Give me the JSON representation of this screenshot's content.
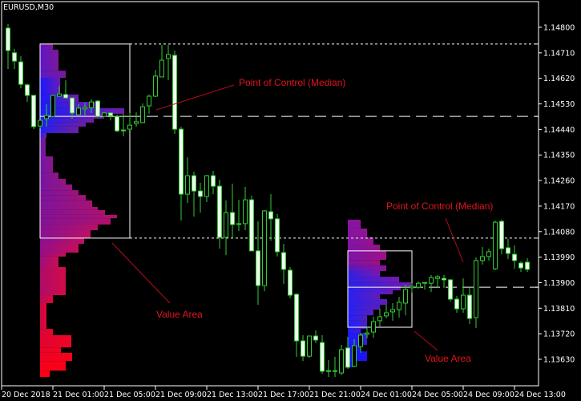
{
  "chart_data": {
    "type": "candlestick",
    "title": "EURUSD,M30",
    "grid": false,
    "y_axis": {
      "position": "right",
      "ticks": [
        "1.14800",
        "1.14710",
        "1.14620",
        "1.14530",
        "1.14440",
        "1.14350",
        "1.14260",
        "1.14170",
        "1.14080",
        "1.13990",
        "1.13900",
        "1.13810",
        "1.13720",
        "1.13630"
      ],
      "range": [
        1.13545,
        1.14912
      ]
    },
    "x_axis": {
      "ticks": [
        "20 Dec 2018",
        "21 Dec 01:00",
        "21 Dec 05:00",
        "21 Dec 09:00",
        "21 Dec 13:00",
        "21 Dec 17:00",
        "21 Dec 21:00",
        "24 Dec 01:00",
        "24 Dec 05:00",
        "24 Dec 09:00",
        "24 Dec 13:00"
      ]
    },
    "colors": {
      "background": "#000000",
      "candle_outline": "#32cd32",
      "bear_fill": "#f0fff0",
      "bull_fill": "#000000",
      "annotation": "#e0141e",
      "levels": "#ffffff"
    },
    "candles_ohlc": [
      [
        1.14797,
        1.14811,
        1.14653,
        1.14718
      ],
      [
        1.1471,
        1.14724,
        1.14653,
        1.14681
      ],
      [
        1.14678,
        1.14698,
        1.14585,
        1.14599
      ],
      [
        1.14597,
        1.14602,
        1.14537,
        1.1456
      ],
      [
        1.1456,
        1.1456,
        1.14441,
        1.1445
      ],
      [
        1.14452,
        1.14472,
        1.14444,
        1.14472
      ],
      [
        1.14478,
        1.14529,
        1.1445,
        1.14489
      ],
      [
        1.14486,
        1.14563,
        1.14486,
        1.1456
      ],
      [
        1.14557,
        1.14594,
        1.14554,
        1.14565
      ],
      [
        1.14563,
        1.14613,
        1.14551,
        1.14551
      ],
      [
        1.14551,
        1.14551,
        1.14478,
        1.14498
      ],
      [
        1.14492,
        1.14529,
        1.14492,
        1.14515
      ],
      [
        1.14512,
        1.14534,
        1.14486,
        1.14517
      ],
      [
        1.14517,
        1.14546,
        1.14498,
        1.14537
      ],
      [
        1.1454,
        1.14543,
        1.14483,
        1.14486
      ],
      [
        1.14486,
        1.145,
        1.14486,
        1.14498
      ],
      [
        1.14498,
        1.145,
        1.14472,
        1.14489
      ],
      [
        1.14486,
        1.14492,
        1.1443,
        1.14435
      ],
      [
        1.14438,
        1.14495,
        1.14416,
        1.14435
      ],
      [
        1.14441,
        1.14498,
        1.14438,
        1.14455
      ],
      [
        1.14461,
        1.145,
        1.1445,
        1.14467
      ],
      [
        1.14464,
        1.14532,
        1.14464,
        1.1452
      ],
      [
        1.14523,
        1.14563,
        1.14495,
        1.14557
      ],
      [
        1.14557,
        1.1465,
        1.14554,
        1.14628
      ],
      [
        1.14625,
        1.14738,
        1.14625,
        1.14684
      ],
      [
        1.1469,
        1.14738,
        1.14613,
        1.14704
      ],
      [
        1.14701,
        1.14718,
        1.14424,
        1.14441
      ],
      [
        1.14441,
        1.1445,
        1.14119,
        1.14212
      ],
      [
        1.14212,
        1.14342,
        1.14181,
        1.14277
      ],
      [
        1.14277,
        1.14291,
        1.14133,
        1.14223
      ],
      [
        1.14223,
        1.14252,
        1.14147,
        1.14204
      ],
      [
        1.14204,
        1.1428,
        1.14184,
        1.14277
      ],
      [
        1.14277,
        1.14294,
        1.14212,
        1.1424
      ],
      [
        1.1424,
        1.14263,
        1.1402,
        1.1406
      ],
      [
        1.1406,
        1.1419,
        1.13997,
        1.14147
      ],
      [
        1.14147,
        1.14249,
        1.14057,
        1.14105
      ],
      [
        1.14105,
        1.14192,
        1.14082,
        1.14108
      ],
      [
        1.14108,
        1.14238,
        1.14085,
        1.14192
      ],
      [
        1.14192,
        1.14207,
        1.14012,
        1.14012
      ],
      [
        1.14012,
        1.14116,
        1.13822,
        1.1389
      ],
      [
        1.1389,
        1.14156,
        1.1387,
        1.14153
      ],
      [
        1.1415,
        1.14212,
        1.14048,
        1.14125
      ],
      [
        1.14125,
        1.14142,
        1.13992,
        1.14009
      ],
      [
        1.14006,
        1.14037,
        1.13896,
        1.13947
      ],
      [
        1.13944,
        1.13955,
        1.13845,
        1.13856
      ],
      [
        1.13859,
        1.13862,
        1.13639,
        1.13695
      ],
      [
        1.13695,
        1.13715,
        1.13624,
        1.13641
      ],
      [
        1.13641,
        1.13712,
        1.13636,
        1.13712
      ],
      [
        1.13712,
        1.13732,
        1.13687,
        1.13698
      ],
      [
        1.13689,
        1.13715,
        1.13579,
        1.13588
      ],
      [
        1.13588,
        1.13627,
        1.13568,
        1.1359
      ],
      [
        1.13588,
        1.13639,
        1.13568,
        1.1359
      ],
      [
        1.13582,
        1.13681,
        1.13574,
        1.13664
      ],
      [
        1.1367,
        1.13709,
        1.13596,
        1.13602
      ],
      [
        1.13605,
        1.13701,
        1.13602,
        1.13678
      ],
      [
        1.13675,
        1.13723,
        1.13653,
        1.13715
      ],
      [
        1.13718,
        1.13743,
        1.13704,
        1.13723
      ],
      [
        1.13726,
        1.1378,
        1.13706,
        1.13763
      ],
      [
        1.13766,
        1.13808,
        1.13746,
        1.1378
      ],
      [
        1.13783,
        1.13822,
        1.13774,
        1.13794
      ],
      [
        1.13797,
        1.13828,
        1.13766,
        1.13805
      ],
      [
        1.13805,
        1.1385,
        1.13777,
        1.13831
      ],
      [
        1.13828,
        1.13893,
        1.13785,
        1.13876
      ],
      [
        1.13882,
        1.13898,
        1.13865,
        1.13887
      ],
      [
        1.13884,
        1.13904,
        1.13879,
        1.13898
      ],
      [
        1.13898,
        1.13901,
        1.13876,
        1.13901
      ],
      [
        1.13898,
        1.13927,
        1.13867,
        1.13918
      ],
      [
        1.13915,
        1.13927,
        1.13882,
        1.13921
      ],
      [
        1.13915,
        1.13927,
        1.13882,
        1.1391
      ],
      [
        1.1391,
        1.13913,
        1.13834,
        1.13842
      ],
      [
        1.13842,
        1.13853,
        1.13794,
        1.13808
      ],
      [
        1.13808,
        1.13915,
        1.13794,
        1.13856
      ],
      [
        1.13856,
        1.13887,
        1.13754,
        1.13774
      ],
      [
        1.13777,
        1.13989,
        1.1374,
        1.13978
      ],
      [
        1.13978,
        1.14026,
        1.13964,
        1.13992
      ],
      [
        1.13992,
        1.1402,
        1.13978,
        1.14009
      ],
      [
        1.13949,
        1.14119,
        1.13944,
        1.14113
      ],
      [
        1.14116,
        1.14122,
        1.14,
        1.1402
      ],
      [
        1.14023,
        1.14054,
        1.13983,
        1.14003
      ],
      [
        1.14,
        1.14031,
        1.13949,
        1.13978
      ],
      [
        1.13969,
        1.13975,
        1.13938,
        1.13952
      ],
      [
        1.13972,
        1.13986,
        1.13938,
        1.13947
      ]
    ],
    "volume_profiles": [
      {
        "session": "21 Dec",
        "poc": 1.14486,
        "value_area": [
          1.14741,
          1.14057
        ],
        "bins_high_low_volume": [
          [
            1.14741,
            1.14721,
            16
          ],
          [
            1.14721,
            1.14647,
            23
          ],
          [
            1.14647,
            1.14622,
            32
          ],
          [
            1.14622,
            1.14563,
            25
          ],
          [
            1.14563,
            1.14537,
            48
          ],
          [
            1.14537,
            1.14515,
            73
          ],
          [
            1.14515,
            1.14495,
            105
          ],
          [
            1.14495,
            1.14478,
            80
          ],
          [
            1.14478,
            1.14464,
            67
          ],
          [
            1.14464,
            1.1445,
            57
          ],
          [
            1.1445,
            1.14427,
            48
          ],
          [
            1.14427,
            1.1441,
            8
          ],
          [
            1.1441,
            1.14345,
            7
          ],
          [
            1.14345,
            1.14288,
            16
          ],
          [
            1.14288,
            1.14266,
            23
          ],
          [
            1.14266,
            1.14246,
            32
          ],
          [
            1.14246,
            1.14226,
            40
          ],
          [
            1.14226,
            1.14209,
            48
          ],
          [
            1.14209,
            1.1419,
            57
          ],
          [
            1.1419,
            1.14167,
            65
          ],
          [
            1.14167,
            1.14156,
            72
          ],
          [
            1.14156,
            1.14139,
            81
          ],
          [
            1.14139,
            1.14127,
            96
          ],
          [
            1.14127,
            1.14105,
            88
          ],
          [
            1.14105,
            1.14085,
            72
          ],
          [
            1.14085,
            1.14057,
            63
          ],
          [
            1.14057,
            1.14037,
            55
          ],
          [
            1.14037,
            1.14006,
            48
          ],
          [
            1.14006,
            1.13992,
            32
          ],
          [
            1.13992,
            1.13955,
            23
          ],
          [
            1.13955,
            1.13856,
            32
          ],
          [
            1.13856,
            1.13828,
            16
          ],
          [
            1.13828,
            1.13737,
            8
          ],
          [
            1.13737,
            1.13715,
            16
          ],
          [
            1.13715,
            1.13672,
            39
          ],
          [
            1.13672,
            1.13653,
            26
          ],
          [
            1.13653,
            1.13624,
            40
          ],
          [
            1.13624,
            1.1359,
            32
          ],
          [
            1.1359,
            1.13568,
            12
          ]
        ]
      },
      {
        "session": "24 Dec",
        "poc": 1.13884,
        "value_area": [
          1.14012,
          1.13743
        ],
        "bins_high_low_volume": [
          [
            1.14122,
            1.14091,
            16
          ],
          [
            1.14091,
            1.1406,
            24
          ],
          [
            1.1406,
            1.14034,
            32
          ],
          [
            1.14034,
            1.14012,
            40
          ],
          [
            1.14012,
            1.1398,
            48
          ],
          [
            1.1398,
            1.13961,
            40
          ],
          [
            1.13961,
            1.13941,
            48
          ],
          [
            1.13941,
            1.13921,
            40
          ],
          [
            1.13921,
            1.13901,
            64
          ],
          [
            1.13901,
            1.13887,
            79
          ],
          [
            1.13887,
            1.13873,
            66
          ],
          [
            1.13873,
            1.13859,
            56
          ],
          [
            1.13859,
            1.13842,
            40
          ],
          [
            1.13842,
            1.13822,
            49
          ],
          [
            1.13822,
            1.13805,
            40
          ],
          [
            1.13805,
            1.13785,
            32
          ],
          [
            1.13785,
            1.13766,
            24
          ],
          [
            1.13766,
            1.13737,
            24
          ],
          [
            1.13737,
            1.13723,
            16
          ],
          [
            1.13723,
            1.13681,
            24
          ],
          [
            1.13681,
            1.13658,
            16
          ],
          [
            1.13658,
            1.13624,
            24
          ],
          [
            1.13624,
            1.13602,
            8
          ]
        ]
      }
    ],
    "annotations": [
      {
        "text": "Point of Control (Median)"
      },
      {
        "text": "Value Area"
      },
      {
        "text": "Point of Control (Median)"
      },
      {
        "text": "Value Area"
      }
    ]
  }
}
